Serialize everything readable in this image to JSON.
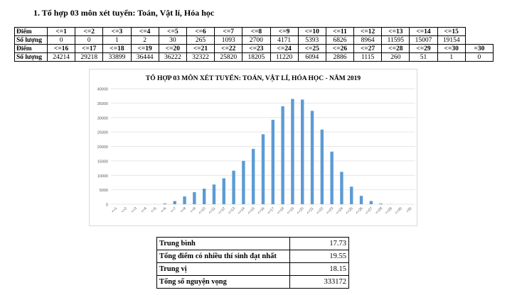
{
  "heading": "1. Tổ hợp 03 môn xét tuyển: Toán, Vật lí, Hóa học",
  "dist_table": {
    "row_label_score": "Điểm",
    "row_label_count": "Số lượng",
    "part1": {
      "scores": [
        "<=1",
        "<=2",
        "<=3",
        "<=4",
        "<=5",
        "<=6",
        "<=7",
        "<=8",
        "<=9",
        "<=10",
        "<=11",
        "<=12",
        "<=13",
        "<=14",
        "<=15"
      ],
      "counts": [
        "0",
        "0",
        "1",
        "2",
        "30",
        "265",
        "1093",
        "2700",
        "4171",
        "5393",
        "6826",
        "8964",
        "11595",
        "15007",
        "19154"
      ]
    },
    "part2": {
      "scores": [
        "<=16",
        "<=17",
        "<=18",
        "<=19",
        "<=20",
        "<=21",
        "<=22",
        "<=23",
        "<=24",
        "<=25",
        "<=26",
        "<=27",
        "<=28",
        "<=29",
        "<=30",
        "=30"
      ],
      "counts": [
        "24214",
        "29218",
        "33899",
        "36444",
        "36222",
        "32322",
        "25820",
        "18205",
        "11220",
        "6094",
        "2886",
        "1115",
        "260",
        "51",
        "1",
        "0"
      ]
    }
  },
  "chart_data": {
    "type": "bar",
    "title": "TỔ HỢP 03 MÔN XÉT TUYỂN: TOÁN, VẬT LÍ, HÓA HỌC - NĂM 2019",
    "categories": [
      "<=1",
      "<=2",
      "<=3",
      "<=4",
      "<=5",
      "<=6",
      "<=7",
      "<=8",
      "<=9",
      "<=10",
      "<=11",
      "<=12",
      "<=13",
      "<=14",
      "<=15",
      "<=16",
      "<=17",
      "<=18",
      "<=19",
      "<=20",
      "<=21",
      "<=22",
      "<=23",
      "<=24",
      "<=25",
      "<=26",
      "<=27",
      "<=28",
      "<=29",
      "<=30",
      "=30"
    ],
    "values": [
      0,
      0,
      1,
      2,
      30,
      265,
      1093,
      2700,
      4171,
      5393,
      6826,
      8964,
      11595,
      15007,
      19154,
      24214,
      29218,
      33899,
      36444,
      36222,
      32322,
      25820,
      18205,
      11220,
      6094,
      2886,
      1115,
      260,
      51,
      1,
      0
    ],
    "yticks": [
      "0",
      "5000",
      "10000",
      "15000",
      "20000",
      "25000",
      "30000",
      "35000",
      "40000"
    ],
    "ylim": [
      0,
      40000
    ],
    "grid": true,
    "bar_color": "#5b9bd5",
    "xlabel": "",
    "ylabel": ""
  },
  "stats": [
    {
      "label": "Trung bình",
      "value": "17.73"
    },
    {
      "label": "Tổng điểm có nhiều thí sinh đạt nhất",
      "value": "19.55"
    },
    {
      "label": "Trung vị",
      "value": "18.15"
    },
    {
      "label": "Tổng số nguyện vọng",
      "value": "333172"
    }
  ]
}
